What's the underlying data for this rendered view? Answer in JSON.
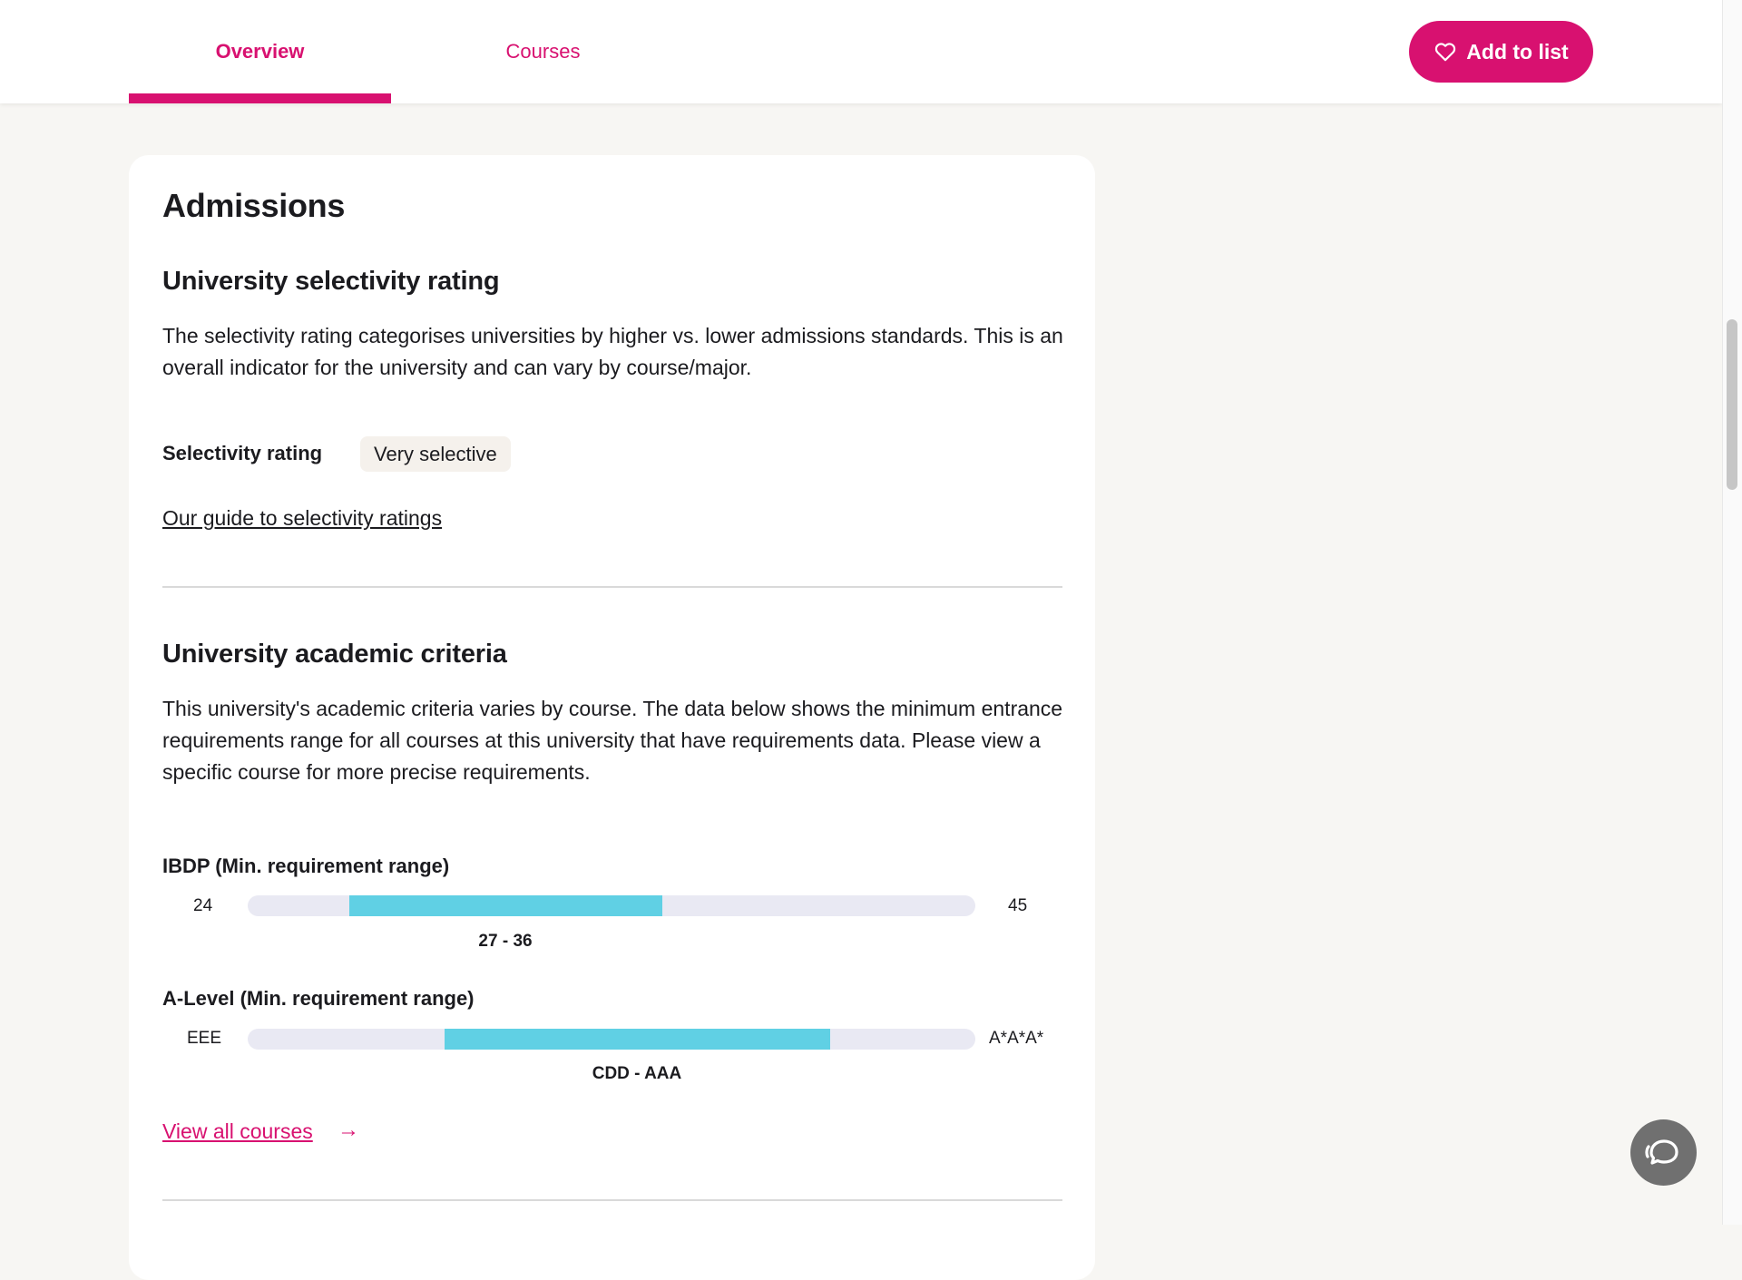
{
  "nav": {
    "tabs": [
      {
        "label": "Overview",
        "active": true
      },
      {
        "label": "Courses",
        "active": false
      }
    ],
    "add_button": {
      "label": "Add to list",
      "icon": "heart-icon"
    }
  },
  "colors": {
    "accent": "#d81170",
    "range_fill": "#60d0e4",
    "range_track": "#e9e9f3",
    "page_bg": "#f7f6f3"
  },
  "admissions": {
    "title": "Admissions",
    "selectivity": {
      "heading": "University selectivity rating",
      "description": "The selectivity rating categorises universities by higher vs. lower admissions standards. This is an overall indicator for the university and can vary by course/major.",
      "rating_label": "Selectivity rating",
      "rating_value": "Very selective",
      "guide_link": "Our guide to selectivity ratings"
    },
    "academic": {
      "heading": "University academic criteria",
      "description": "This university's academic criteria varies by course. The data below shows the minimum entrance requirements range for all courses at this university that have requirements data. Please view a specific course for more precise requirements.",
      "ranges": [
        {
          "title": "IBDP (Min. requirement range)",
          "min_label": "24",
          "max_label": "45",
          "range_label": "27 - 36",
          "fill_start_fraction": 0.14,
          "fill_end_fraction": 0.57
        },
        {
          "title": "A-Level (Min. requirement range)",
          "min_label": "EEE",
          "max_label": "A*A*A*",
          "range_label": "CDD - AAA",
          "fill_start_fraction": 0.27,
          "fill_end_fraction": 0.8
        }
      ],
      "view_all_link": "View all courses",
      "view_all_arrow": "→"
    }
  },
  "chat": {
    "icon": "chat-icon"
  }
}
